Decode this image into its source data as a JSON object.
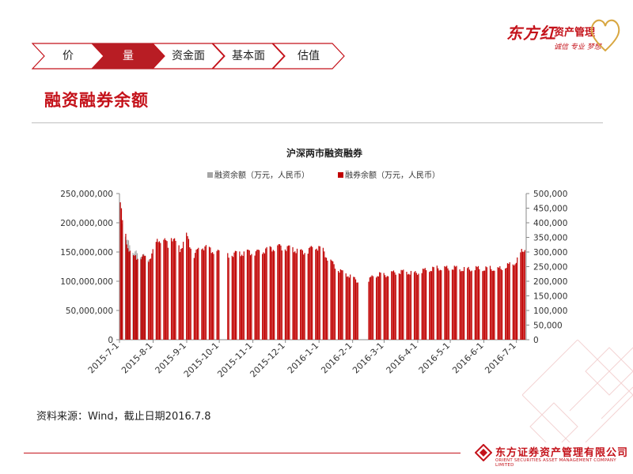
{
  "brand": {
    "script_name": "东方红",
    "amc_label": "资产管理",
    "slogan": "诚信 专业 梦想"
  },
  "nav": {
    "items": [
      {
        "label": "价",
        "active": false
      },
      {
        "label": "量",
        "active": true
      },
      {
        "label": "资金面",
        "active": false
      },
      {
        "label": "基本面",
        "active": false
      },
      {
        "label": "估值",
        "active": false
      }
    ]
  },
  "page": {
    "section_title": "融资融券余额",
    "source_note": "资料来源：Wind，截止日期2016.7.8"
  },
  "footer": {
    "company_cn": "东方证券资产管理有限公司",
    "company_en": "ORIENT SECURITIES ASSET MANAGEMENT COMPANY LIMITED"
  },
  "colors": {
    "accent": "#c4121a",
    "financing_bar": "#a6a6a6",
    "securities_bar": "#c00000"
  },
  "chart_data": {
    "type": "bar",
    "title": "沪深两市融资融券",
    "series": [
      {
        "name": "融资余额（万元，人民币）",
        "axis": "left",
        "color": "#a6a6a6"
      },
      {
        "name": "融券余额（万元，人民币）",
        "axis": "right",
        "color": "#c00000"
      }
    ],
    "left_axis": {
      "min": 0,
      "max": 250000000,
      "ticks": [
        "0",
        "50,000,000",
        "100,000,000",
        "150,000,000",
        "200,000,000",
        "250,000,000"
      ]
    },
    "right_axis": {
      "min": 0,
      "max": 500000,
      "ticks": [
        "0",
        "50,000",
        "100,000",
        "150,000",
        "200,000",
        "250,000",
        "300,000",
        "350,000",
        "400,000",
        "450,000",
        "500,000"
      ]
    },
    "x_ticks": [
      "2015-7-1",
      "2015-8-1",
      "2015-9-1",
      "2015-10-1",
      "2015-11-1",
      "2015-12-1",
      "2016-1-1",
      "2016-2-1",
      "2016-3-1",
      "2016-4-1",
      "2016-5-1",
      "2016-6-1",
      "2016-7-1"
    ],
    "legend_position": "top",
    "financing_points": [
      {
        "date": "2015-7-1",
        "value": 205000000
      },
      {
        "date": "2015-7-6",
        "value": 180000000
      },
      {
        "date": "2015-7-10",
        "value": 160000000
      },
      {
        "date": "2015-7-14",
        "value": 150000000
      },
      {
        "date": "2015-7-20",
        "value": 145000000
      },
      {
        "date": "2015-7-27",
        "value": 140000000
      }
    ],
    "securities_points": [
      {
        "date": "2015-7-1",
        "value": 470000
      },
      {
        "date": "2015-7-3",
        "value": 400000
      },
      {
        "date": "2015-7-8",
        "value": 320000
      },
      {
        "date": "2015-7-13",
        "value": 280000
      },
      {
        "date": "2015-7-20",
        "value": 285000
      },
      {
        "date": "2015-7-27",
        "value": 275000
      },
      {
        "date": "2015-7-31",
        "value": 300000
      },
      {
        "date": "2015-8-5",
        "value": 345000
      },
      {
        "date": "2015-8-10",
        "value": 340000
      },
      {
        "date": "2015-8-14",
        "value": 325000
      },
      {
        "date": "2015-8-17",
        "value": 355000
      },
      {
        "date": "2015-8-21",
        "value": 330000
      },
      {
        "date": "2015-8-25",
        "value": 310000
      },
      {
        "date": "2015-8-31",
        "value": 355000
      },
      {
        "date": "2015-9-7",
        "value": 290000
      },
      {
        "date": "2015-9-14",
        "value": 320000
      },
      {
        "date": "2015-9-21",
        "value": 310000
      },
      {
        "date": "2015-9-28",
        "value": 300000
      },
      {
        "date": "2015-10-8",
        "value": 290000
      },
      {
        "date": "2015-10-15",
        "value": 295000
      },
      {
        "date": "2015-10-20",
        "value": 296000
      },
      {
        "date": "2015-10-27",
        "value": 300000
      },
      {
        "date": "2015-11-3",
        "value": 298000
      },
      {
        "date": "2015-11-10",
        "value": 305000
      },
      {
        "date": "2015-11-17",
        "value": 312000
      },
      {
        "date": "2015-11-24",
        "value": 318000
      },
      {
        "date": "2015-11-30",
        "value": 315000
      },
      {
        "date": "2015-12-7",
        "value": 312000
      },
      {
        "date": "2015-12-14",
        "value": 300000
      },
      {
        "date": "2015-12-21",
        "value": 305000
      },
      {
        "date": "2015-12-28",
        "value": 320000
      },
      {
        "date": "2016-1-4",
        "value": 305000
      },
      {
        "date": "2016-1-8",
        "value": 280000
      },
      {
        "date": "2016-1-13",
        "value": 260000
      },
      {
        "date": "2016-1-18",
        "value": 240000
      },
      {
        "date": "2016-1-22",
        "value": 230000
      },
      {
        "date": "2016-1-28",
        "value": 220000
      },
      {
        "date": "2016-2-3",
        "value": 205000
      },
      {
        "date": "2016-2-5",
        "value": 200000
      },
      {
        "date": "2016-2-15",
        "value": 205000
      },
      {
        "date": "2016-2-19",
        "value": 216000
      },
      {
        "date": "2016-2-25",
        "value": 225000
      },
      {
        "date": "2016-3-1",
        "value": 220000
      },
      {
        "date": "2016-3-7",
        "value": 228000
      },
      {
        "date": "2016-3-14",
        "value": 232000
      },
      {
        "date": "2016-3-21",
        "value": 232000
      },
      {
        "date": "2016-3-28",
        "value": 226000
      },
      {
        "date": "2016-4-5",
        "value": 236000
      },
      {
        "date": "2016-4-11",
        "value": 240000
      },
      {
        "date": "2016-4-18",
        "value": 245000
      },
      {
        "date": "2016-4-25",
        "value": 244000
      },
      {
        "date": "2016-5-3",
        "value": 246000
      },
      {
        "date": "2016-5-9",
        "value": 242000
      },
      {
        "date": "2016-5-16",
        "value": 240000
      },
      {
        "date": "2016-5-23",
        "value": 244000
      },
      {
        "date": "2016-5-31",
        "value": 242000
      },
      {
        "date": "2016-6-6",
        "value": 244000
      },
      {
        "date": "2016-6-13",
        "value": 240000
      },
      {
        "date": "2016-6-20",
        "value": 250000
      },
      {
        "date": "2016-6-24",
        "value": 256000
      },
      {
        "date": "2016-6-28",
        "value": 262000
      },
      {
        "date": "2016-7-1",
        "value": 272000
      },
      {
        "date": "2016-7-5",
        "value": 300000
      },
      {
        "date": "2016-7-8",
        "value": 315000
      }
    ]
  }
}
